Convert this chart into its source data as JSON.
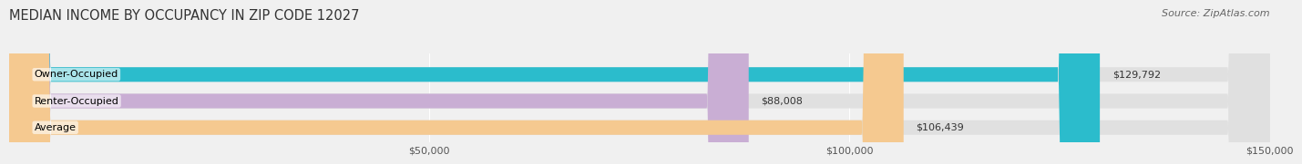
{
  "title": "MEDIAN INCOME BY OCCUPANCY IN ZIP CODE 12027",
  "source": "Source: ZipAtlas.com",
  "categories": [
    "Owner-Occupied",
    "Renter-Occupied",
    "Average"
  ],
  "values": [
    129792,
    88008,
    106439
  ],
  "bar_colors": [
    "#2bbccc",
    "#c9aed4",
    "#f5c990"
  ],
  "value_labels": [
    "$129,792",
    "$88,008",
    "$106,439"
  ],
  "xlim": [
    0,
    150000
  ],
  "xticks": [
    50000,
    100000,
    150000
  ],
  "xtick_labels": [
    "$50,000",
    "$100,000",
    "$150,000"
  ],
  "background_color": "#f0f0f0",
  "bar_background_color": "#e0e0e0",
  "title_fontsize": 10.5,
  "source_fontsize": 8,
  "label_fontsize": 8,
  "value_fontsize": 8,
  "tick_fontsize": 8
}
